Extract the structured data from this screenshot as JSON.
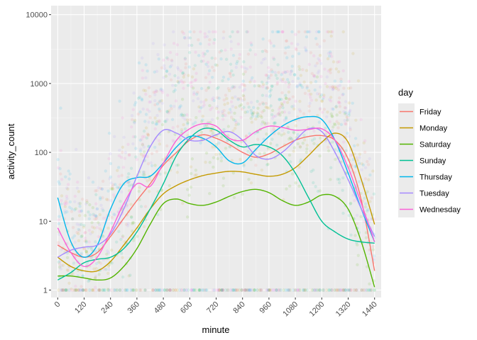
{
  "chart_data": {
    "type": "line",
    "title": "",
    "xlabel": "minute",
    "ylabel": "activity_count",
    "x_scale": "linear",
    "y_scale": "log10",
    "xlim": [
      -30,
      1470
    ],
    "ylim": [
      0.78,
      13500
    ],
    "x_ticks": [
      0,
      120,
      240,
      360,
      480,
      600,
      720,
      840,
      960,
      1080,
      1200,
      1320,
      1440
    ],
    "x_tick_labels": [
      "0",
      "120",
      "240",
      "360",
      "480",
      "600",
      "720",
      "840",
      "960",
      "1080",
      "1200",
      "1320",
      "1440"
    ],
    "y_ticks": [
      1,
      10,
      100,
      1000,
      10000
    ],
    "y_tick_labels": [
      "1",
      "10",
      "100",
      "1000",
      "10000"
    ],
    "x_tick_label_rotation": "45deg",
    "grid": true,
    "panel_background": "#ebebeb",
    "scatter_layer": "dense semi-transparent points per day, mostly between 1 and ~5000 with a floor row at 1",
    "legend": {
      "title": "day",
      "position": "right"
    },
    "series": [
      {
        "name": "Friday",
        "color": "#F8766D",
        "x": [
          0,
          60,
          120,
          180,
          240,
          300,
          360,
          420,
          480,
          540,
          600,
          660,
          720,
          780,
          840,
          900,
          960,
          1020,
          1080,
          1140,
          1200,
          1260,
          1320,
          1380,
          1440
        ],
        "values": [
          4.5,
          3.5,
          3,
          3.5,
          6,
          11,
          20,
          35,
          65,
          100,
          150,
          180,
          160,
          130,
          100,
          85,
          95,
          120,
          150,
          170,
          175,
          150,
          80,
          20,
          1.9
        ]
      },
      {
        "name": "Monday",
        "color": "#C49A00",
        "x": [
          0,
          60,
          120,
          180,
          240,
          300,
          360,
          420,
          480,
          540,
          600,
          660,
          720,
          780,
          840,
          900,
          960,
          1020,
          1080,
          1140,
          1200,
          1260,
          1320,
          1380,
          1440
        ],
        "values": [
          3,
          2.2,
          1.9,
          1.9,
          2.6,
          4.5,
          8,
          15,
          25,
          33,
          40,
          46,
          50,
          53,
          52,
          48,
          45,
          48,
          60,
          90,
          140,
          190,
          140,
          40,
          9
        ]
      },
      {
        "name": "Saturday",
        "color": "#53B400",
        "x": [
          0,
          60,
          120,
          180,
          240,
          300,
          360,
          420,
          480,
          540,
          600,
          660,
          720,
          780,
          840,
          900,
          960,
          1020,
          1080,
          1140,
          1200,
          1260,
          1320,
          1380,
          1440
        ],
        "values": [
          1.6,
          1.6,
          1.5,
          1.4,
          1.5,
          2.2,
          4,
          9,
          18,
          21,
          18,
          17,
          19,
          23,
          27,
          29,
          26,
          20,
          17,
          19,
          24,
          23,
          15,
          5,
          1.1
        ]
      },
      {
        "name": "Sunday",
        "color": "#00C094",
        "x": [
          0,
          60,
          120,
          180,
          240,
          300,
          360,
          420,
          480,
          540,
          600,
          660,
          720,
          780,
          840,
          900,
          960,
          1020,
          1080,
          1140,
          1200,
          1260,
          1320,
          1380,
          1440
        ],
        "values": [
          1.4,
          1.8,
          2.5,
          2.8,
          3,
          4,
          7,
          15,
          35,
          90,
          160,
          220,
          210,
          150,
          120,
          130,
          120,
          90,
          50,
          22,
          10,
          7,
          5.5,
          5,
          4.8
        ]
      },
      {
        "name": "Thursday",
        "color": "#00B6EB",
        "x": [
          0,
          60,
          120,
          180,
          240,
          300,
          360,
          420,
          480,
          540,
          600,
          660,
          720,
          780,
          840,
          900,
          960,
          1020,
          1080,
          1140,
          1200,
          1260,
          1320,
          1380,
          1440
        ],
        "values": [
          22,
          5,
          3,
          4.5,
          15,
          35,
          43,
          45,
          70,
          120,
          170,
          160,
          120,
          75,
          70,
          110,
          170,
          240,
          300,
          330,
          300,
          150,
          50,
          15,
          5
        ]
      },
      {
        "name": "Tuesday",
        "color": "#A58AFF",
        "x": [
          0,
          60,
          120,
          180,
          240,
          300,
          360,
          420,
          480,
          540,
          600,
          660,
          720,
          780,
          840,
          900,
          960,
          1020,
          1080,
          1140,
          1200,
          1260,
          1320,
          1380,
          1440
        ],
        "values": [
          3,
          3.8,
          4.2,
          4.5,
          6.5,
          15,
          45,
          120,
          210,
          190,
          150,
          150,
          180,
          200,
          150,
          90,
          80,
          100,
          150,
          220,
          200,
          100,
          40,
          15,
          6
        ]
      },
      {
        "name": "Wednesday",
        "color": "#FB61D7",
        "x": [
          0,
          60,
          120,
          180,
          240,
          300,
          360,
          420,
          480,
          540,
          600,
          660,
          720,
          780,
          840,
          900,
          960,
          1020,
          1080,
          1140,
          1200,
          1260,
          1320,
          1380,
          1440
        ],
        "values": [
          8,
          3.5,
          2.2,
          3,
          7,
          18,
          35,
          32,
          70,
          150,
          220,
          260,
          240,
          160,
          150,
          200,
          240,
          230,
          210,
          215,
          220,
          150,
          60,
          18,
          5
        ]
      }
    ]
  }
}
